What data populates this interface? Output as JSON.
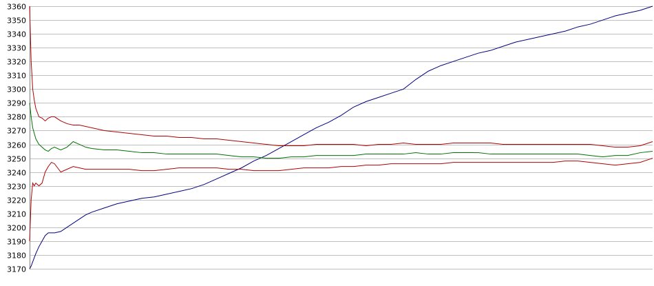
{
  "chart_data": {
    "type": "line",
    "title": "",
    "xlabel": "",
    "ylabel": "",
    "x": [
      0,
      0.25,
      0.5,
      0.75,
      1,
      1.5,
      2,
      2.5,
      3,
      3.5,
      4,
      5,
      6,
      7,
      8,
      9,
      10,
      12,
      14,
      16,
      18,
      20,
      22,
      24,
      26,
      28,
      30,
      32,
      34,
      36,
      38,
      40,
      42,
      44,
      46,
      48,
      50,
      52,
      54,
      56,
      58,
      60,
      62,
      64,
      66,
      68,
      70,
      72,
      74,
      76,
      78,
      80,
      82,
      84,
      86,
      88,
      90,
      92,
      94,
      96,
      98,
      100
    ],
    "ylim": [
      3170,
      3360
    ],
    "yticks": [
      3170,
      3180,
      3190,
      3200,
      3210,
      3220,
      3230,
      3240,
      3250,
      3260,
      3270,
      3280,
      3290,
      3300,
      3310,
      3320,
      3330,
      3340,
      3350,
      3360
    ],
    "grid": true,
    "grid_axis": "y",
    "legend": "none",
    "series": [
      {
        "color": "#000080",
        "values": [
          3170,
          3172,
          3175,
          3178,
          3181,
          3186,
          3190,
          3194,
          3196,
          3196,
          3196,
          3197,
          3200,
          3203,
          3206,
          3209,
          3211,
          3214,
          3217,
          3219,
          3221,
          3222,
          3224,
          3226,
          3228,
          3231,
          3235,
          3239,
          3243,
          3248,
          3252,
          3257,
          3262,
          3267,
          3272,
          3276,
          3281,
          3287,
          3291,
          3294,
          3297,
          3300,
          3307,
          3313,
          3317,
          3320,
          3323,
          3326,
          3328,
          3331,
          3334,
          3336,
          3338,
          3340,
          3342,
          3345,
          3347,
          3350,
          3353,
          3355,
          3357,
          3360
        ]
      },
      {
        "color": "#B00000",
        "values": [
          3360,
          3320,
          3300,
          3292,
          3286,
          3280,
          3279,
          3277,
          3279,
          3280,
          3280,
          3277,
          3275,
          3274,
          3274,
          3273,
          3272,
          3270,
          3269,
          3268,
          3267,
          3266,
          3266,
          3265,
          3265,
          3264,
          3264,
          3263,
          3262,
          3261,
          3260,
          3259,
          3259,
          3259,
          3260,
          3260,
          3260,
          3260,
          3259,
          3260,
          3260,
          3261,
          3260,
          3260,
          3260,
          3261,
          3261,
          3261,
          3261,
          3260,
          3260,
          3260,
          3260,
          3260,
          3260,
          3260,
          3260,
          3259,
          3258,
          3258,
          3259,
          3262
        ]
      },
      {
        "color": "#007000",
        "values": [
          3290,
          3280,
          3272,
          3268,
          3264,
          3260,
          3258,
          3256,
          3255,
          3257,
          3258,
          3256,
          3258,
          3262,
          3260,
          3258,
          3257,
          3256,
          3256,
          3255,
          3254,
          3254,
          3253,
          3253,
          3253,
          3253,
          3253,
          3252,
          3251,
          3251,
          3250,
          3250,
          3251,
          3251,
          3252,
          3252,
          3252,
          3252,
          3253,
          3253,
          3253,
          3253,
          3254,
          3253,
          3253,
          3254,
          3254,
          3254,
          3253,
          3253,
          3253,
          3253,
          3253,
          3253,
          3253,
          3253,
          3252,
          3251,
          3252,
          3252,
          3254,
          3255
        ]
      },
      {
        "color": "#B00000",
        "values": [
          3190,
          3220,
          3232,
          3230,
          3232,
          3230,
          3232,
          3240,
          3244,
          3247,
          3246,
          3240,
          3242,
          3244,
          3243,
          3242,
          3242,
          3242,
          3242,
          3242,
          3241,
          3241,
          3242,
          3243,
          3243,
          3243,
          3243,
          3242,
          3242,
          3241,
          3241,
          3241,
          3242,
          3243,
          3243,
          3243,
          3244,
          3244,
          3245,
          3245,
          3246,
          3246,
          3246,
          3246,
          3246,
          3247,
          3247,
          3247,
          3247,
          3247,
          3247,
          3247,
          3247,
          3247,
          3248,
          3248,
          3247,
          3246,
          3245,
          3246,
          3247,
          3250
        ]
      }
    ]
  }
}
